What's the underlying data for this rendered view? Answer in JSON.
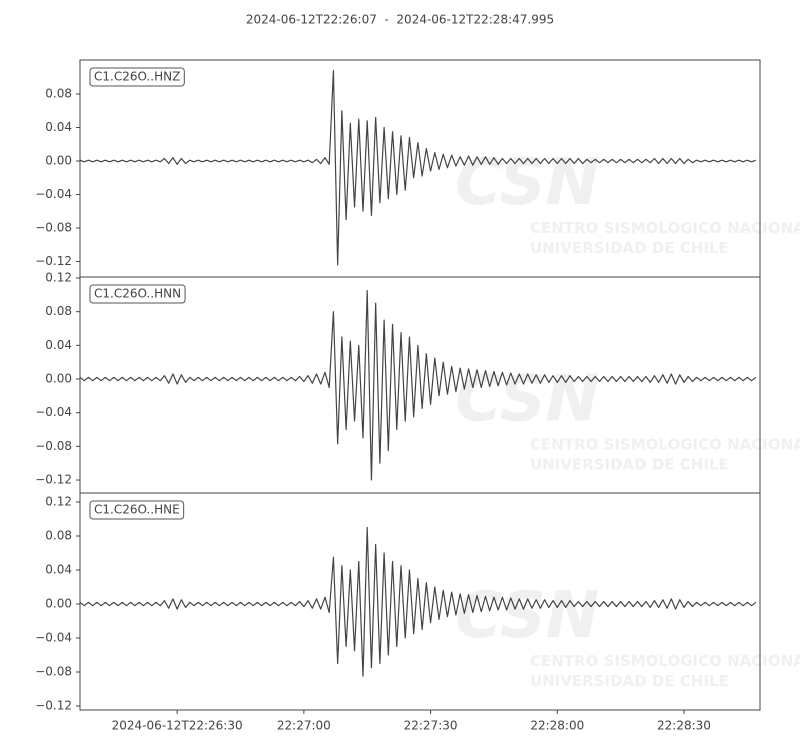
{
  "chart_data": [
    {
      "type": "line",
      "title": "2024-06-12T22:26:07  -  2024-06-12T22:28:47.995",
      "label": "C1.C26O..HNZ",
      "color": "#444444",
      "x": [
        0,
        1,
        2,
        3,
        4,
        5,
        6,
        7,
        8,
        9,
        10,
        11,
        12,
        13,
        14,
        15,
        16,
        17,
        18,
        19,
        20,
        21,
        22,
        23,
        24,
        25,
        26,
        27,
        28,
        29,
        30,
        31,
        32,
        33,
        34,
        35,
        36,
        37,
        38,
        39,
        40,
        41,
        42,
        43,
        44,
        45,
        46,
        47,
        48,
        49,
        50,
        51,
        52,
        53,
        54,
        55,
        56,
        57,
        58,
        59,
        60,
        61,
        62,
        63,
        64,
        65,
        66,
        67,
        68,
        69,
        70,
        71,
        72,
        73,
        74,
        75,
        76,
        77,
        78,
        79,
        80,
        81,
        82,
        83,
        84,
        85,
        86,
        87,
        88,
        89,
        90,
        91,
        92,
        93,
        94,
        95,
        96,
        97,
        98,
        99,
        100,
        101,
        102,
        103,
        104,
        105,
        106,
        107,
        108,
        109,
        110,
        111,
        112,
        113,
        114,
        115,
        116,
        117,
        118,
        119,
        120,
        121,
        122,
        123,
        124,
        125,
        126,
        127,
        128,
        129,
        130,
        131,
        132,
        133,
        134,
        135,
        136,
        137,
        138,
        139,
        140,
        141,
        142,
        143,
        144,
        145,
        146,
        147,
        148,
        149,
        150,
        151,
        152,
        153,
        154,
        155,
        156,
        157,
        158,
        159,
        160
      ],
      "values": [
        0.001,
        -0.001,
        0.001,
        -0.001,
        0.001,
        -0.001,
        0.001,
        -0.001,
        0.001,
        -0.001,
        0.001,
        -0.001,
        0.001,
        -0.001,
        0.001,
        -0.001,
        0.001,
        -0.001,
        0.001,
        -0.001,
        0.003,
        -0.003,
        0.004,
        -0.004,
        0.003,
        -0.003,
        0.001,
        -0.001,
        0.001,
        -0.001,
        0.001,
        -0.001,
        0.001,
        -0.001,
        0.001,
        -0.001,
        0.001,
        -0.001,
        0.001,
        -0.001,
        0.001,
        -0.001,
        0.001,
        -0.001,
        0.001,
        -0.001,
        0.001,
        -0.001,
        0.001,
        -0.001,
        0.001,
        -0.001,
        0.001,
        -0.001,
        0.001,
        -0.002,
        0.002,
        -0.003,
        0.004,
        -0.004,
        0.108,
        -0.124,
        0.06,
        -0.07,
        0.045,
        -0.055,
        0.05,
        -0.06,
        0.048,
        -0.065,
        0.052,
        -0.05,
        0.04,
        -0.045,
        0.035,
        -0.04,
        0.03,
        -0.035,
        0.028,
        -0.02,
        0.022,
        -0.018,
        0.015,
        -0.012,
        0.01,
        -0.01,
        0.008,
        -0.008,
        0.007,
        -0.006,
        0.005,
        -0.005,
        0.006,
        -0.005,
        0.005,
        -0.004,
        0.005,
        -0.004,
        0.004,
        -0.004,
        0.003,
        -0.003,
        0.003,
        -0.003,
        0.003,
        -0.003,
        0.003,
        -0.003,
        0.003,
        -0.003,
        0.003,
        -0.003,
        0.003,
        -0.003,
        0.003,
        -0.003,
        0.003,
        -0.003,
        0.003,
        -0.003,
        0.002,
        -0.002,
        0.002,
        -0.002,
        0.002,
        -0.002,
        0.002,
        -0.002,
        0.002,
        -0.002,
        0.002,
        -0.002,
        0.002,
        -0.002,
        0.002,
        -0.002,
        0.003,
        -0.003,
        0.003,
        -0.003,
        0.003,
        -0.003,
        0.003,
        -0.003,
        0.002,
        -0.002,
        0.001,
        -0.001,
        0.001,
        -0.001,
        0.001,
        -0.001,
        0.001,
        -0.001,
        0.001,
        -0.001,
        0.001,
        -0.001,
        0.001,
        -0.001,
        0.001
      ],
      "xlim": [
        0,
        160.995
      ],
      "ylim": [
        -0.1385,
        0.1206
      ],
      "yticks": [
        {
          "value": -0.12,
          "label": "−0.12"
        },
        {
          "value": -0.08,
          "label": "−0.08"
        },
        {
          "value": -0.04,
          "label": "−0.04"
        },
        {
          "value": 0,
          "label": "0.00"
        },
        0.04,
        0.08
      ]
    },
    {
      "type": "line",
      "label": "C1.C26O..HNN",
      "color": "#444444",
      "x": [
        0,
        1,
        2,
        3,
        4,
        5,
        6,
        7,
        8,
        9,
        10,
        11,
        12,
        13,
        14,
        15,
        16,
        17,
        18,
        19,
        20,
        21,
        22,
        23,
        24,
        25,
        26,
        27,
        28,
        29,
        30,
        31,
        32,
        33,
        34,
        35,
        36,
        37,
        38,
        39,
        40,
        41,
        42,
        43,
        44,
        45,
        46,
        47,
        48,
        49,
        50,
        51,
        52,
        53,
        54,
        55,
        56,
        57,
        58,
        59,
        60,
        61,
        62,
        63,
        64,
        65,
        66,
        67,
        68,
        69,
        70,
        71,
        72,
        73,
        74,
        75,
        76,
        77,
        78,
        79,
        80,
        81,
        82,
        83,
        84,
        85,
        86,
        87,
        88,
        89,
        90,
        91,
        92,
        93,
        94,
        95,
        96,
        97,
        98,
        99,
        100,
        101,
        102,
        103,
        104,
        105,
        106,
        107,
        108,
        109,
        110,
        111,
        112,
        113,
        114,
        115,
        116,
        117,
        118,
        119,
        120,
        121,
        122,
        123,
        124,
        125,
        126,
        127,
        128,
        129,
        130,
        131,
        132,
        133,
        134,
        135,
        136,
        137,
        138,
        139,
        140,
        141,
        142,
        143,
        144,
        145,
        146,
        147,
        148,
        149,
        150,
        151,
        152,
        153,
        154,
        155,
        156,
        157,
        158,
        159,
        160
      ],
      "values": [
        0.002,
        -0.002,
        0.002,
        -0.002,
        0.002,
        -0.002,
        0.002,
        -0.002,
        0.002,
        -0.002,
        0.002,
        -0.002,
        0.002,
        -0.002,
        0.002,
        -0.002,
        0.002,
        -0.002,
        0.002,
        -0.002,
        0.004,
        -0.005,
        0.006,
        -0.006,
        0.005,
        -0.004,
        0.002,
        -0.002,
        0.002,
        -0.002,
        0.002,
        -0.002,
        0.002,
        -0.002,
        0.002,
        -0.002,
        0.002,
        -0.002,
        0.002,
        -0.002,
        0.002,
        -0.002,
        0.002,
        -0.002,
        0.002,
        -0.002,
        0.002,
        -0.002,
        0.002,
        -0.002,
        0.002,
        -0.002,
        0.003,
        -0.003,
        0.004,
        -0.005,
        0.006,
        -0.006,
        0.008,
        -0.01,
        0.08,
        -0.077,
        0.05,
        -0.06,
        0.045,
        -0.05,
        0.04,
        -0.07,
        0.105,
        -0.12,
        0.09,
        -0.1,
        0.07,
        -0.085,
        0.065,
        -0.06,
        0.055,
        -0.05,
        0.05,
        -0.045,
        0.04,
        -0.035,
        0.03,
        -0.03,
        0.025,
        -0.02,
        0.02,
        -0.018,
        0.015,
        -0.015,
        0.013,
        -0.012,
        0.012,
        -0.01,
        0.011,
        -0.01,
        0.01,
        -0.009,
        0.009,
        -0.008,
        0.008,
        -0.007,
        0.007,
        -0.006,
        0.006,
        -0.006,
        0.006,
        -0.005,
        0.005,
        -0.005,
        0.005,
        -0.004,
        0.004,
        -0.004,
        0.004,
        -0.004,
        0.004,
        -0.003,
        0.003,
        -0.003,
        0.003,
        -0.003,
        0.003,
        -0.003,
        0.003,
        -0.003,
        0.003,
        -0.003,
        0.003,
        -0.003,
        0.003,
        -0.003,
        0.003,
        -0.003,
        0.003,
        -0.004,
        0.004,
        -0.004,
        0.005,
        -0.005,
        0.006,
        -0.006,
        0.005,
        -0.004,
        0.003,
        -0.003,
        0.002,
        -0.002,
        0.002,
        -0.002,
        0.002,
        -0.002,
        0.002,
        -0.002,
        0.002,
        -0.002,
        0.002,
        -0.002,
        0.002,
        -0.002,
        0.002
      ],
      "xlim": [
        0,
        160.995
      ],
      "ylim": [
        -0.1354,
        0.1212
      ],
      "yticks": [
        {
          "value": -0.12,
          "label": "−0.12"
        },
        {
          "value": -0.08,
          "label": "−0.08"
        },
        {
          "value": -0.04,
          "label": "−0.04"
        },
        {
          "value": 0,
          "label": "0.00"
        },
        0.04,
        0.08,
        0.12
      ]
    },
    {
      "type": "line",
      "label": "C1.C26O..HNE",
      "color": "#444444",
      "x": [
        0,
        1,
        2,
        3,
        4,
        5,
        6,
        7,
        8,
        9,
        10,
        11,
        12,
        13,
        14,
        15,
        16,
        17,
        18,
        19,
        20,
        21,
        22,
        23,
        24,
        25,
        26,
        27,
        28,
        29,
        30,
        31,
        32,
        33,
        34,
        35,
        36,
        37,
        38,
        39,
        40,
        41,
        42,
        43,
        44,
        45,
        46,
        47,
        48,
        49,
        50,
        51,
        52,
        53,
        54,
        55,
        56,
        57,
        58,
        59,
        60,
        61,
        62,
        63,
        64,
        65,
        66,
        67,
        68,
        69,
        70,
        71,
        72,
        73,
        74,
        75,
        76,
        77,
        78,
        79,
        80,
        81,
        82,
        83,
        84,
        85,
        86,
        87,
        88,
        89,
        90,
        91,
        92,
        93,
        94,
        95,
        96,
        97,
        98,
        99,
        100,
        101,
        102,
        103,
        104,
        105,
        106,
        107,
        108,
        109,
        110,
        111,
        112,
        113,
        114,
        115,
        116,
        117,
        118,
        119,
        120,
        121,
        122,
        123,
        124,
        125,
        126,
        127,
        128,
        129,
        130,
        131,
        132,
        133,
        134,
        135,
        136,
        137,
        138,
        139,
        140,
        141,
        142,
        143,
        144,
        145,
        146,
        147,
        148,
        149,
        150,
        151,
        152,
        153,
        154,
        155,
        156,
        157,
        158,
        159,
        160
      ],
      "values": [
        0.002,
        -0.002,
        0.002,
        -0.002,
        0.002,
        -0.002,
        0.002,
        -0.002,
        0.002,
        -0.002,
        0.002,
        -0.002,
        0.002,
        -0.002,
        0.002,
        -0.002,
        0.002,
        -0.002,
        0.002,
        -0.002,
        0.004,
        -0.005,
        0.006,
        -0.006,
        0.005,
        -0.004,
        0.002,
        -0.002,
        0.002,
        -0.002,
        0.002,
        -0.002,
        0.002,
        -0.002,
        0.002,
        -0.002,
        0.002,
        -0.002,
        0.002,
        -0.002,
        0.002,
        -0.002,
        0.002,
        -0.002,
        0.002,
        -0.002,
        0.002,
        -0.002,
        0.002,
        -0.002,
        0.002,
        -0.002,
        0.003,
        -0.003,
        0.004,
        -0.005,
        0.006,
        -0.006,
        0.008,
        -0.01,
        0.055,
        -0.07,
        0.045,
        -0.05,
        0.04,
        -0.055,
        0.05,
        -0.085,
        0.09,
        -0.075,
        0.07,
        -0.07,
        0.06,
        -0.06,
        0.05,
        -0.05,
        0.045,
        -0.04,
        0.04,
        -0.035,
        0.03,
        -0.03,
        0.025,
        -0.022,
        0.02,
        -0.018,
        0.016,
        -0.015,
        0.014,
        -0.013,
        0.012,
        -0.011,
        0.011,
        -0.01,
        0.01,
        -0.009,
        0.009,
        -0.008,
        0.008,
        -0.007,
        0.008,
        -0.007,
        0.007,
        -0.006,
        0.006,
        -0.006,
        0.006,
        -0.005,
        0.005,
        -0.005,
        0.005,
        -0.004,
        0.004,
        -0.004,
        0.004,
        -0.004,
        0.004,
        -0.003,
        0.003,
        -0.003,
        0.003,
        -0.003,
        0.003,
        -0.003,
        0.003,
        -0.003,
        0.003,
        -0.003,
        0.003,
        -0.003,
        0.003,
        -0.003,
        0.003,
        -0.003,
        0.003,
        -0.004,
        0.004,
        -0.004,
        0.005,
        -0.005,
        0.006,
        -0.006,
        0.005,
        -0.004,
        0.003,
        -0.003,
        0.002,
        -0.002,
        0.002,
        -0.002,
        0.002,
        -0.002,
        0.002,
        -0.002,
        0.002,
        -0.002,
        0.002,
        -0.002,
        0.002,
        -0.002,
        0.002
      ],
      "xlim": [
        0,
        160.995
      ],
      "ylim": [
        -0.1247,
        0.1306
      ],
      "yticks": [
        {
          "value": -0.12,
          "label": "−0.12"
        },
        {
          "value": -0.08,
          "label": "−0.08"
        },
        {
          "value": -0.04,
          "label": "−0.04"
        },
        {
          "value": 0,
          "label": "0.00"
        },
        0.04,
        0.08,
        0.12
      ],
      "xticks": [
        {
          "value": 23,
          "label": "2024-06-12T22:26:30"
        },
        {
          "value": 53,
          "label": "22:27:00"
        },
        {
          "value": 83,
          "label": "22:27:30"
        },
        {
          "value": 113,
          "label": "22:28:00"
        },
        {
          "value": 143,
          "label": "22:28:30"
        }
      ]
    }
  ],
  "watermark": {
    "logo": "CSN",
    "line1": "CENTRO SISMOLOGICO NACIONAL",
    "line2": "UNIVERSIDAD DE CHILE"
  }
}
